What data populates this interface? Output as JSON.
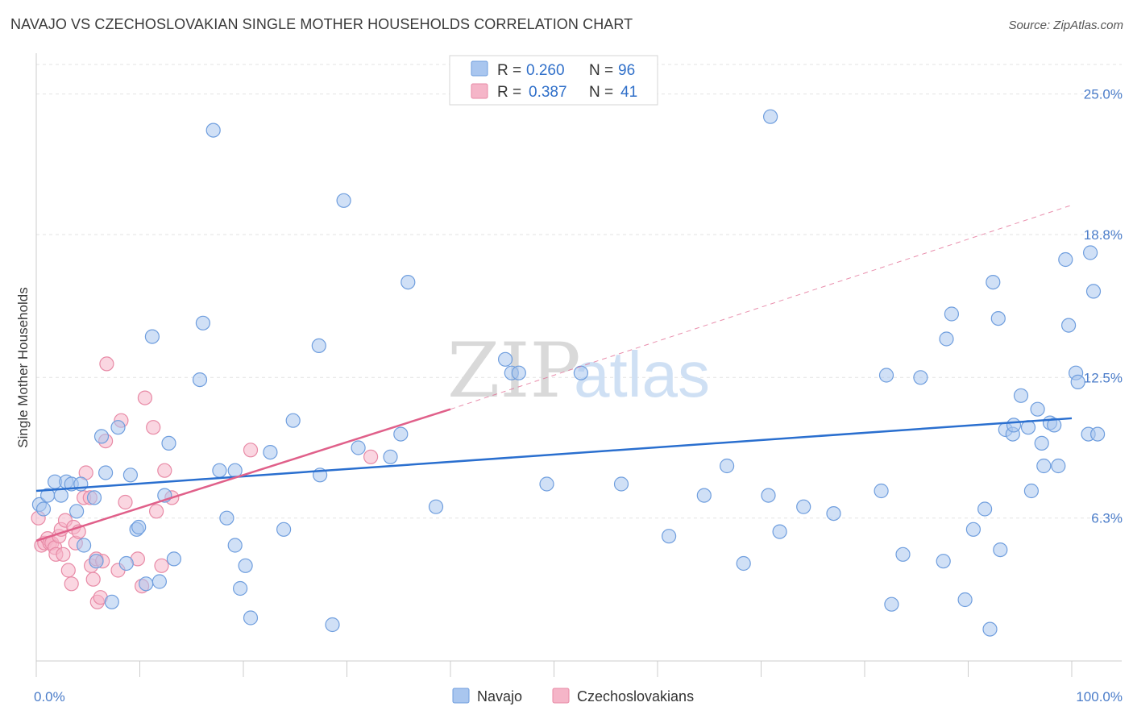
{
  "title": "NAVAJO VS CZECHOSLOVAKIAN SINGLE MOTHER HOUSEHOLDS CORRELATION CHART",
  "source": "Source: ZipAtlas.com",
  "watermark": {
    "zip": "ZIP",
    "atlas": "atlas"
  },
  "colors": {
    "navajo_fill": "#a9c6ef",
    "navajo_stroke": "#6f9ede",
    "navajo_line": "#2a6fcf",
    "czech_fill": "#f5b5c8",
    "czech_stroke": "#e88aa6",
    "czech_line": "#e0608a",
    "tick_text": "#4a7cc9"
  },
  "legend": {
    "rows": [
      {
        "r_label": "R =",
        "r_value": "0.260",
        "n_label": "N =",
        "n_value": "96"
      },
      {
        "r_label": "R =",
        "r_value": "0.387",
        "n_label": "N =",
        "n_value": "41"
      }
    ]
  },
  "chart_data": {
    "type": "scatter",
    "title": "NAVAJO VS CZECHOSLOVAKIAN SINGLE MOTHER HOUSEHOLDS CORRELATION CHART",
    "xlabel": "",
    "ylabel": "Single Mother Households",
    "xlim": [
      0,
      100
    ],
    "ylim": [
      0,
      26.3
    ],
    "x_tick_labels": [
      "0.0%",
      "100.0%"
    ],
    "y_ticks": [
      6.3,
      12.5,
      18.8,
      25.0
    ],
    "y_tick_labels": [
      "6.3%",
      "12.5%",
      "18.8%",
      "25.0%"
    ],
    "grid": "horizontal dashed",
    "legend_position": "top-center",
    "series": [
      {
        "name": "Navajo",
        "points": [
          [
            0.3,
            6.9
          ],
          [
            0.7,
            6.7
          ],
          [
            1.1,
            7.3
          ],
          [
            1.8,
            7.9
          ],
          [
            2.4,
            7.3
          ],
          [
            2.9,
            7.9
          ],
          [
            3.4,
            7.8
          ],
          [
            3.9,
            6.6
          ],
          [
            4.3,
            7.8
          ],
          [
            4.6,
            5.1
          ],
          [
            5.6,
            7.2
          ],
          [
            5.8,
            4.4
          ],
          [
            6.3,
            9.9
          ],
          [
            6.7,
            8.3
          ],
          [
            7.3,
            2.6
          ],
          [
            7.9,
            10.3
          ],
          [
            8.7,
            4.3
          ],
          [
            9.1,
            8.2
          ],
          [
            9.7,
            5.8
          ],
          [
            9.9,
            5.9
          ],
          [
            10.6,
            3.4
          ],
          [
            11.2,
            14.3
          ],
          [
            11.9,
            3.5
          ],
          [
            12.4,
            7.3
          ],
          [
            12.8,
            9.6
          ],
          [
            13.3,
            4.5
          ],
          [
            15.8,
            12.4
          ],
          [
            16.1,
            14.9
          ],
          [
            17.1,
            23.4
          ],
          [
            17.7,
            8.4
          ],
          [
            18.4,
            6.3
          ],
          [
            19.2,
            8.4
          ],
          [
            19.2,
            5.1
          ],
          [
            19.7,
            3.2
          ],
          [
            20.2,
            4.2
          ],
          [
            20.7,
            1.9
          ],
          [
            22.6,
            9.2
          ],
          [
            23.9,
            5.8
          ],
          [
            24.8,
            10.6
          ],
          [
            27.3,
            13.9
          ],
          [
            27.4,
            8.2
          ],
          [
            28.6,
            1.6
          ],
          [
            29.7,
            20.3
          ],
          [
            31.1,
            9.4
          ],
          [
            34.2,
            9.0
          ],
          [
            35.2,
            10.0
          ],
          [
            35.9,
            16.7
          ],
          [
            38.6,
            6.8
          ],
          [
            45.3,
            13.3
          ],
          [
            45.9,
            12.7
          ],
          [
            46.6,
            12.7
          ],
          [
            49.3,
            7.8
          ],
          [
            52.6,
            12.7
          ],
          [
            56.5,
            7.8
          ],
          [
            61.1,
            5.5
          ],
          [
            64.5,
            7.3
          ],
          [
            66.7,
            8.6
          ],
          [
            68.3,
            4.3
          ],
          [
            70.7,
            7.3
          ],
          [
            70.9,
            24.0
          ],
          [
            71.8,
            5.7
          ],
          [
            74.1,
            6.8
          ],
          [
            77.0,
            6.5
          ],
          [
            81.6,
            7.5
          ],
          [
            82.1,
            12.6
          ],
          [
            82.6,
            2.5
          ],
          [
            83.7,
            4.7
          ],
          [
            85.4,
            12.5
          ],
          [
            87.6,
            4.4
          ],
          [
            87.9,
            14.2
          ],
          [
            88.4,
            15.3
          ],
          [
            89.7,
            2.7
          ],
          [
            90.5,
            5.8
          ],
          [
            91.6,
            6.7
          ],
          [
            92.1,
            1.4
          ],
          [
            92.4,
            16.7
          ],
          [
            92.9,
            15.1
          ],
          [
            93.1,
            4.9
          ],
          [
            93.6,
            10.2
          ],
          [
            94.3,
            10.0
          ],
          [
            94.4,
            10.4
          ],
          [
            95.1,
            11.7
          ],
          [
            95.8,
            10.3
          ],
          [
            96.1,
            7.5
          ],
          [
            96.7,
            11.1
          ],
          [
            97.1,
            9.6
          ],
          [
            97.3,
            8.6
          ],
          [
            97.9,
            10.5
          ],
          [
            98.3,
            10.4
          ],
          [
            98.7,
            8.6
          ],
          [
            99.4,
            17.7
          ],
          [
            99.7,
            14.8
          ],
          [
            100.4,
            12.7
          ],
          [
            100.6,
            12.3
          ],
          [
            101.6,
            10.0
          ],
          [
            101.8,
            18.0
          ],
          [
            102.1,
            16.3
          ],
          [
            102.5,
            10.0
          ]
        ],
        "trend": {
          "x": [
            0,
            100
          ],
          "y": [
            7.5,
            10.7
          ],
          "style": "solid"
        }
      },
      {
        "name": "Czechoslovakians",
        "points": [
          [
            0.2,
            6.3
          ],
          [
            0.5,
            5.1
          ],
          [
            0.8,
            5.2
          ],
          [
            1.1,
            5.4
          ],
          [
            1.3,
            5.2
          ],
          [
            1.5,
            5.2
          ],
          [
            1.8,
            5.0
          ],
          [
            1.9,
            4.7
          ],
          [
            2.2,
            5.5
          ],
          [
            2.4,
            5.8
          ],
          [
            2.6,
            4.7
          ],
          [
            2.8,
            6.2
          ],
          [
            3.1,
            4.0
          ],
          [
            3.4,
            3.4
          ],
          [
            3.6,
            5.9
          ],
          [
            3.8,
            5.2
          ],
          [
            4.1,
            5.7
          ],
          [
            4.6,
            7.2
          ],
          [
            4.8,
            8.3
          ],
          [
            5.2,
            7.2
          ],
          [
            5.3,
            4.2
          ],
          [
            5.5,
            3.6
          ],
          [
            5.8,
            4.5
          ],
          [
            5.9,
            2.6
          ],
          [
            6.2,
            2.8
          ],
          [
            6.4,
            4.4
          ],
          [
            6.7,
            9.7
          ],
          [
            6.8,
            13.1
          ],
          [
            7.9,
            4.0
          ],
          [
            8.2,
            10.6
          ],
          [
            8.6,
            7.0
          ],
          [
            9.8,
            4.5
          ],
          [
            10.2,
            3.3
          ],
          [
            10.5,
            11.6
          ],
          [
            11.3,
            10.3
          ],
          [
            11.6,
            6.6
          ],
          [
            12.1,
            4.2
          ],
          [
            12.4,
            8.4
          ],
          [
            13.1,
            7.2
          ],
          [
            20.7,
            9.3
          ],
          [
            32.3,
            9.0
          ]
        ],
        "trend": {
          "x": [
            0,
            40
          ],
          "y": [
            5.3,
            11.1
          ],
          "style": "solid",
          "extended": {
            "x": [
              40,
              100
            ],
            "y": [
              11.1,
              20.1
            ],
            "style": "dashed"
          }
        }
      }
    ]
  }
}
